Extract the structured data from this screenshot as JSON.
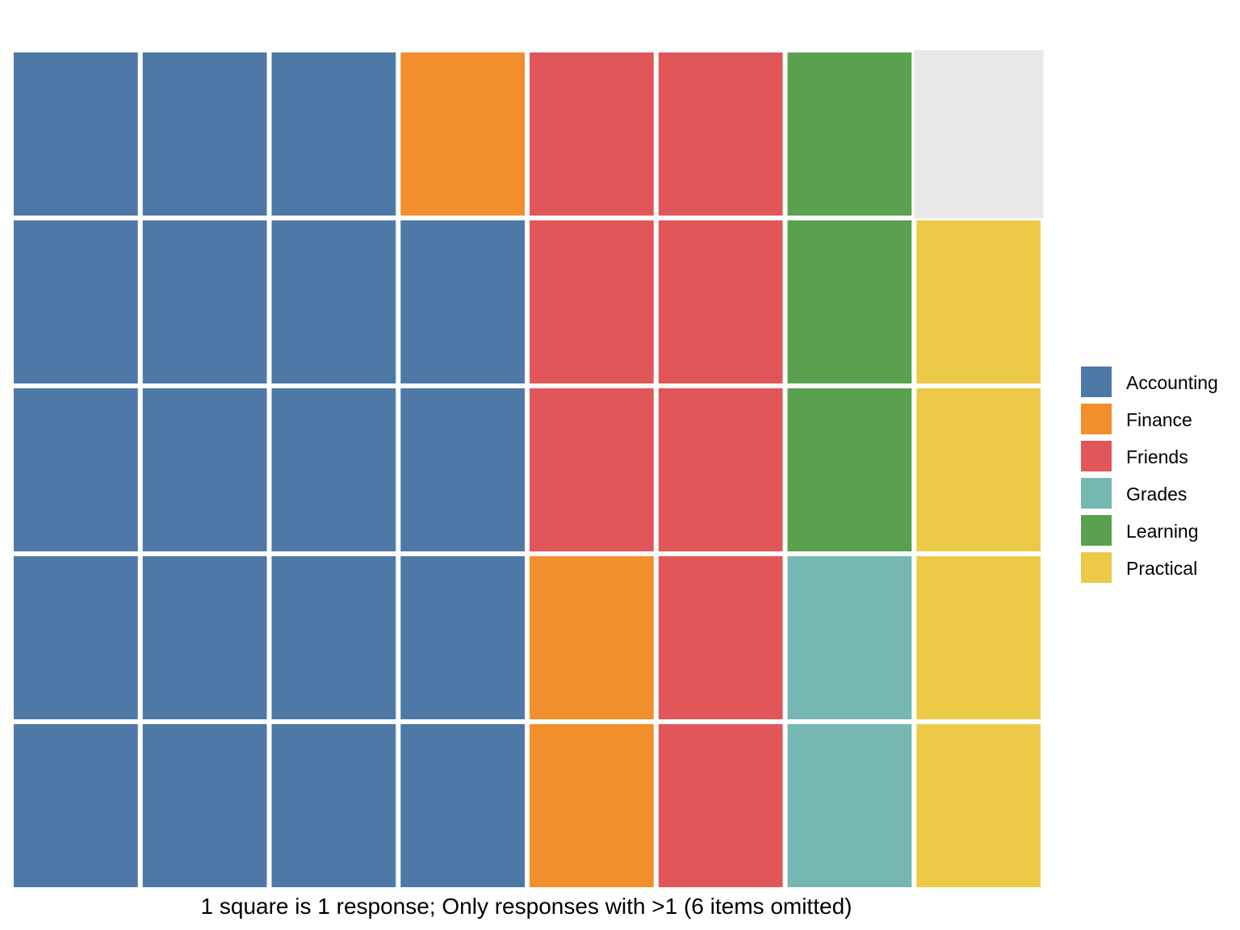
{
  "chart_data": {
    "type": "waffle",
    "rows": 5,
    "columns": 8,
    "fill_order": "column-major, bottom-to-top",
    "unit": "1 square is 1 response",
    "caption": "1 square is 1 response; Only responses with >1 (6 items omitted)",
    "empty_color": "#e8e8e8",
    "legend_position": "right",
    "series": [
      {
        "name": "Accounting",
        "value": 19,
        "color": "#4e79a7"
      },
      {
        "name": "Finance",
        "value": 3,
        "color": "#f28e2b"
      },
      {
        "name": "Friends",
        "value": 8,
        "color": "#e15759"
      },
      {
        "name": "Grades",
        "value": 2,
        "color": "#76b7b2"
      },
      {
        "name": "Learning",
        "value": 3,
        "color": "#59a14f"
      },
      {
        "name": "Practical",
        "value": 4,
        "color": "#edc948"
      }
    ]
  }
}
